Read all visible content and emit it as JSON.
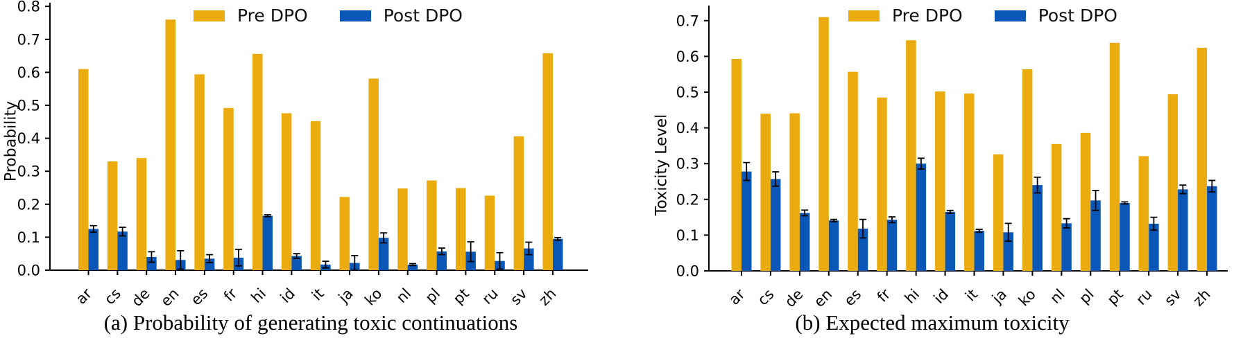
{
  "figure": {
    "colors": {
      "pre": "#EAAB0E",
      "post": "#0B57B8",
      "error_bar": "#000000",
      "axis": "#000000"
    },
    "legend": {
      "pre_label": "Pre DPO",
      "post_label": "Post DPO",
      "position": "top"
    }
  },
  "chart_data": [
    {
      "type": "bar",
      "title": "(a) Probability of generating toxic continuations",
      "ylabel": "Probability",
      "xlabel": "",
      "ylim": [
        0.0,
        0.8
      ],
      "yticks": [
        0.0,
        0.1,
        0.2,
        0.3,
        0.4,
        0.5,
        0.6,
        0.7,
        0.8
      ],
      "grid": false,
      "legend_position": "top",
      "categories": [
        "ar",
        "cs",
        "de",
        "en",
        "es",
        "fr",
        "hi",
        "id",
        "it",
        "ja",
        "ko",
        "nl",
        "pl",
        "pt",
        "ru",
        "sv",
        "zh"
      ],
      "series": [
        {
          "name": "Pre DPO",
          "color": "#EAAB0E",
          "values": [
            0.61,
            0.33,
            0.34,
            0.76,
            0.594,
            0.492,
            0.656,
            0.476,
            0.452,
            0.222,
            0.581,
            0.248,
            0.272,
            0.249,
            0.226,
            0.406,
            0.658
          ]
        },
        {
          "name": "Post DPO",
          "color": "#0B57B8",
          "values": [
            0.125,
            0.117,
            0.04,
            0.031,
            0.035,
            0.038,
            0.165,
            0.043,
            0.017,
            0.022,
            0.098,
            0.017,
            0.057,
            0.056,
            0.028,
            0.066,
            0.095
          ],
          "errors": [
            0.01,
            0.013,
            0.016,
            0.028,
            0.012,
            0.025,
            0.003,
            0.007,
            0.01,
            0.022,
            0.015,
            0.003,
            0.01,
            0.03,
            0.025,
            0.019,
            0.004
          ]
        }
      ]
    },
    {
      "type": "bar",
      "title": "(b) Expected maximum toxicity",
      "ylabel": "Toxicity Level",
      "xlabel": "",
      "ylim": [
        0.0,
        0.72
      ],
      "yticks": [
        0.0,
        0.1,
        0.2,
        0.3,
        0.4,
        0.5,
        0.6,
        0.7
      ],
      "grid": false,
      "legend_position": "top",
      "categories": [
        "ar",
        "cs",
        "de",
        "en",
        "es",
        "fr",
        "hi",
        "id",
        "it",
        "ja",
        "ko",
        "nl",
        "pl",
        "pt",
        "ru",
        "sv",
        "zh"
      ],
      "series": [
        {
          "name": "Pre DPO",
          "color": "#EAAB0E",
          "values": [
            0.593,
            0.44,
            0.441,
            0.71,
            0.557,
            0.485,
            0.645,
            0.502,
            0.496,
            0.326,
            0.564,
            0.355,
            0.386,
            0.638,
            0.321,
            0.494,
            0.624
          ]
        },
        {
          "name": "Post DPO",
          "color": "#0B57B8",
          "values": [
            0.278,
            0.257,
            0.162,
            0.141,
            0.118,
            0.143,
            0.3,
            0.165,
            0.112,
            0.108,
            0.24,
            0.133,
            0.197,
            0.19,
            0.132,
            0.228,
            0.237
          ],
          "errors": [
            0.025,
            0.02,
            0.008,
            0.003,
            0.026,
            0.008,
            0.015,
            0.004,
            0.004,
            0.025,
            0.022,
            0.013,
            0.028,
            0.003,
            0.018,
            0.012,
            0.016
          ]
        }
      ]
    }
  ]
}
